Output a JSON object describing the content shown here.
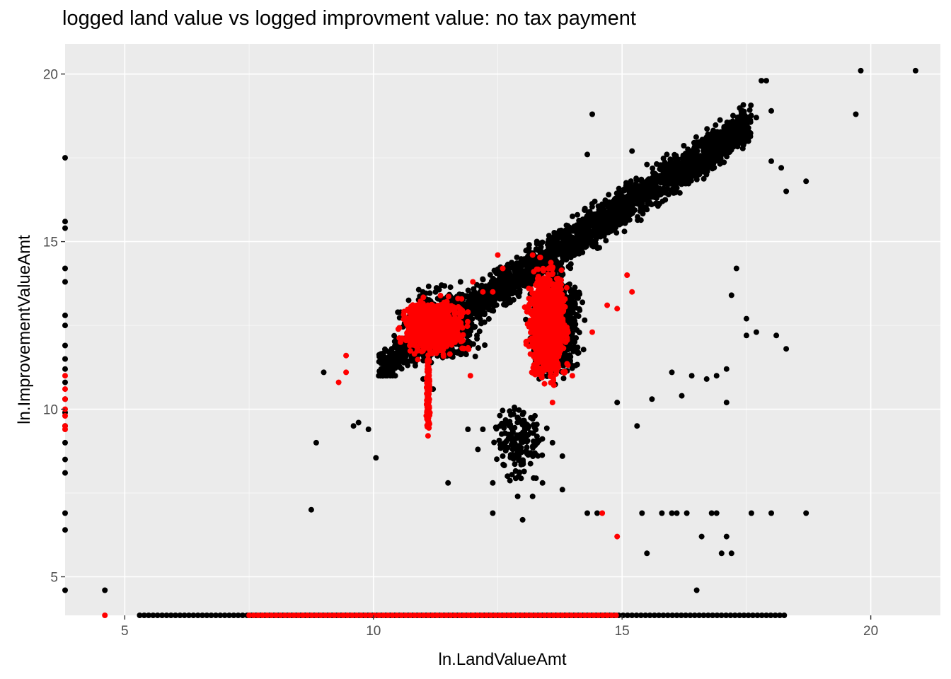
{
  "chart_data": {
    "type": "scatter",
    "title": "logged land value vs logged improvment value: no tax payment",
    "xlabel": "ln.LandValueAmt",
    "ylabel": "ln.ImprovementValueAmt",
    "xlim": [
      3.8,
      21.4
    ],
    "ylim": [
      3.85,
      20.9
    ],
    "xticks": [
      5,
      10,
      15,
      20
    ],
    "yticks": [
      5,
      10,
      15,
      20
    ],
    "grid": true,
    "legend": "none",
    "colors": {
      "panel": "#ebebeb",
      "grid_major": "#ffffff",
      "series_0": "#000000",
      "series_1": "#ff0000"
    },
    "series": [
      {
        "color": "#000000",
        "points": [
          [
            3.8,
            17.5
          ],
          [
            3.8,
            15.6
          ],
          [
            3.8,
            15.4
          ],
          [
            3.8,
            14.2
          ],
          [
            3.8,
            13.8
          ],
          [
            3.8,
            12.8
          ],
          [
            3.8,
            12.5
          ],
          [
            3.8,
            11.9
          ],
          [
            3.8,
            11.5
          ],
          [
            3.8,
            11.2
          ],
          [
            3.8,
            10.8
          ],
          [
            3.8,
            10.3
          ],
          [
            3.8,
            9.9
          ],
          [
            3.8,
            9.5
          ],
          [
            3.8,
            9.0
          ],
          [
            3.8,
            8.5
          ],
          [
            3.8,
            8.1
          ],
          [
            3.8,
            6.9
          ],
          [
            3.8,
            6.4
          ],
          [
            3.8,
            4.6
          ],
          [
            4.6,
            4.6
          ],
          [
            8.75,
            7.0
          ],
          [
            8.85,
            9.0
          ],
          [
            9.0,
            11.1
          ],
          [
            9.6,
            9.5
          ],
          [
            9.7,
            9.6
          ],
          [
            9.9,
            9.4
          ],
          [
            10.05,
            8.55
          ],
          [
            10.4,
            11.6
          ],
          [
            11.0,
            10.9
          ],
          [
            11.2,
            10.6
          ],
          [
            11.5,
            7.8
          ],
          [
            11.9,
            9.4
          ],
          [
            12.1,
            8.8
          ],
          [
            12.2,
            9.4
          ],
          [
            12.4,
            7.8
          ],
          [
            12.6,
            8.6
          ],
          [
            12.8,
            8.8
          ],
          [
            12.4,
            6.9
          ],
          [
            12.9,
            7.4
          ],
          [
            13.0,
            6.7
          ],
          [
            13.2,
            7.4
          ],
          [
            13.4,
            7.8
          ],
          [
            13.6,
            9.0
          ],
          [
            13.8,
            8.6
          ],
          [
            13.8,
            7.6
          ],
          [
            14.3,
            6.9
          ],
          [
            14.5,
            6.9
          ],
          [
            14.9,
            10.2
          ],
          [
            15.3,
            9.5
          ],
          [
            15.6,
            10.3
          ],
          [
            16.0,
            11.1
          ],
          [
            16.2,
            10.4
          ],
          [
            16.4,
            11.0
          ],
          [
            16.7,
            10.9
          ],
          [
            16.9,
            11.0
          ],
          [
            17.1,
            10.2
          ],
          [
            17.1,
            11.2
          ],
          [
            17.5,
            12.2
          ],
          [
            17.2,
            13.4
          ],
          [
            17.3,
            14.2
          ],
          [
            17.5,
            12.7
          ],
          [
            17.7,
            12.3
          ],
          [
            18.1,
            12.2
          ],
          [
            18.3,
            11.8
          ],
          [
            18.3,
            16.5
          ],
          [
            18.7,
            16.8
          ],
          [
            18.2,
            17.2
          ],
          [
            15.4,
            6.9
          ],
          [
            15.5,
            5.7
          ],
          [
            15.8,
            6.9
          ],
          [
            16.0,
            6.9
          ],
          [
            16.1,
            6.9
          ],
          [
            16.3,
            6.9
          ],
          [
            16.5,
            4.6
          ],
          [
            16.6,
            6.2
          ],
          [
            16.8,
            6.9
          ],
          [
            16.9,
            6.9
          ],
          [
            17.0,
            5.7
          ],
          [
            17.1,
            6.2
          ],
          [
            17.2,
            5.7
          ],
          [
            17.6,
            6.9
          ],
          [
            18.0,
            6.9
          ],
          [
            18.7,
            6.9
          ],
          [
            19.7,
            18.8
          ],
          [
            19.8,
            20.1
          ],
          [
            20.9,
            20.1
          ],
          [
            18.0,
            18.9
          ],
          [
            17.9,
            19.8
          ],
          [
            17.8,
            19.8
          ],
          [
            17.7,
            18.7
          ],
          [
            18.0,
            17.4
          ],
          [
            14.4,
            18.8
          ],
          [
            15.2,
            17.7
          ],
          [
            14.3,
            17.6
          ],
          [
            15.5,
            17.3
          ],
          [
            15.9,
            17.6
          ]
        ],
        "clusters": [
          {
            "x": [
              10.1,
              17.6
            ],
            "y": [
              11.0,
              19.6
            ],
            "slope": 0.98,
            "intercept": 1.3,
            "spread": 0.85,
            "count": 2600
          },
          {
            "x": [
              13.0,
              14.3
            ],
            "y": [
              10.5,
              14.8
            ],
            "count": 900
          },
          {
            "x": [
              10.3,
              12.4
            ],
            "y": [
              11.0,
              14.0
            ],
            "count": 500
          },
          {
            "x": [
              12.3,
              13.6
            ],
            "y": [
              7.5,
              10.5
            ],
            "count": 160
          }
        ],
        "baseline": {
          "y": 3.85,
          "x_range": [
            5.3,
            18.3
          ]
        }
      },
      {
        "color": "#ff0000",
        "points": [
          [
            3.8,
            11.0
          ],
          [
            3.8,
            10.6
          ],
          [
            3.8,
            10.3
          ],
          [
            3.8,
            10.0
          ],
          [
            3.8,
            9.8
          ],
          [
            3.8,
            9.5
          ],
          [
            3.8,
            9.4
          ],
          [
            4.6,
            3.85
          ],
          [
            9.3,
            10.8
          ],
          [
            9.45,
            11.1
          ],
          [
            9.45,
            11.6
          ],
          [
            11.95,
            11.0
          ],
          [
            11.9,
            12.9
          ],
          [
            12.0,
            13.8
          ],
          [
            12.2,
            13.5
          ],
          [
            12.4,
            13.5
          ],
          [
            12.5,
            14.6
          ],
          [
            12.6,
            14.2
          ],
          [
            13.2,
            14.6
          ],
          [
            14.6,
            6.9
          ],
          [
            14.9,
            6.2
          ],
          [
            14.4,
            12.3
          ],
          [
            14.7,
            13.1
          ],
          [
            14.9,
            13.0
          ],
          [
            15.1,
            14.0
          ],
          [
            15.2,
            13.5
          ],
          [
            13.6,
            10.2
          ],
          [
            14.0,
            11.0
          ]
        ],
        "clusters": [
          {
            "x": [
              10.4,
              12.0
            ],
            "y": [
              11.4,
              13.5
            ],
            "count": 900
          },
          {
            "x": [
              13.0,
              14.0
            ],
            "y": [
              10.5,
              14.6
            ],
            "count": 1100
          },
          {
            "x": [
              11.05,
              11.15
            ],
            "y": [
              9.0,
              12.0
            ],
            "count": 140
          }
        ],
        "baseline": {
          "y": 3.85,
          "x_range": [
            7.5,
            14.9
          ]
        }
      }
    ]
  }
}
